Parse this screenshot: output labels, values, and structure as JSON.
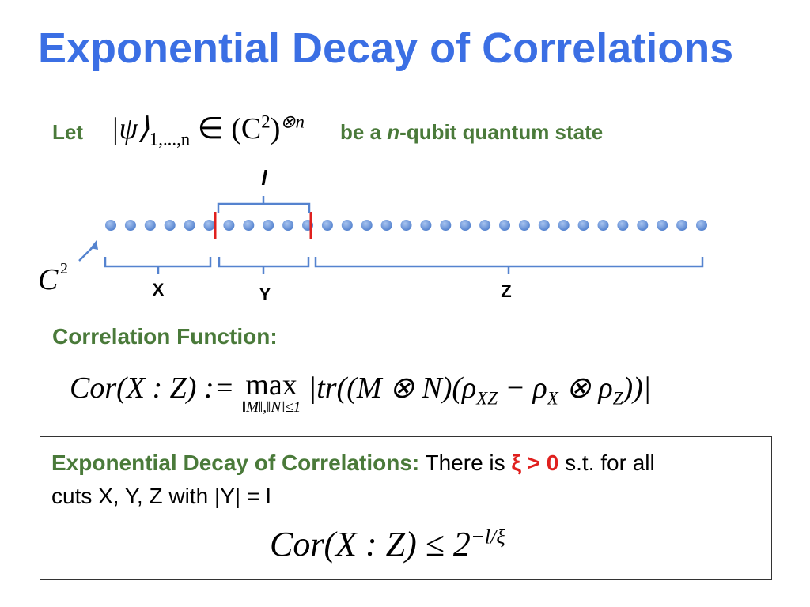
{
  "title": "Exponential Decay of Correlations",
  "intro": {
    "let": "Let",
    "ket": "|ψ⟩",
    "ket_sub": "1,...,n",
    "in": "∈ (C",
    "sq": "2",
    "close": ")",
    "tensor": "⊗n",
    "be": "be a",
    "n": "n",
    "rest": "-qubit quantum state"
  },
  "diagram": {
    "l": "l",
    "x": "X",
    "y": "Y",
    "z": "Z",
    "c": "C",
    "c_sup": "2"
  },
  "correlation": {
    "label": "Correlation Function:",
    "lhs": "Cor(X : Z) := ",
    "max": "max",
    "max_sub": "‖M‖,‖N‖≤1",
    "b1": "|tr((M ⊗ N)(ρ",
    "s1": "XZ",
    "b2": " − ρ",
    "s2": "X",
    "b3": " ⊗ ρ",
    "s3": "Z",
    "b4": "))|"
  },
  "box": {
    "heading": "Exponential Decay of Correlations:",
    "t1": " There is ",
    "xi": "ξ > 0",
    "t2": " s.t. for all",
    "t3": "cuts X, Y, Z with |Y| = l",
    "formula": "Cor(X : Z) ≤ 2",
    "sup": "−l/ξ"
  }
}
